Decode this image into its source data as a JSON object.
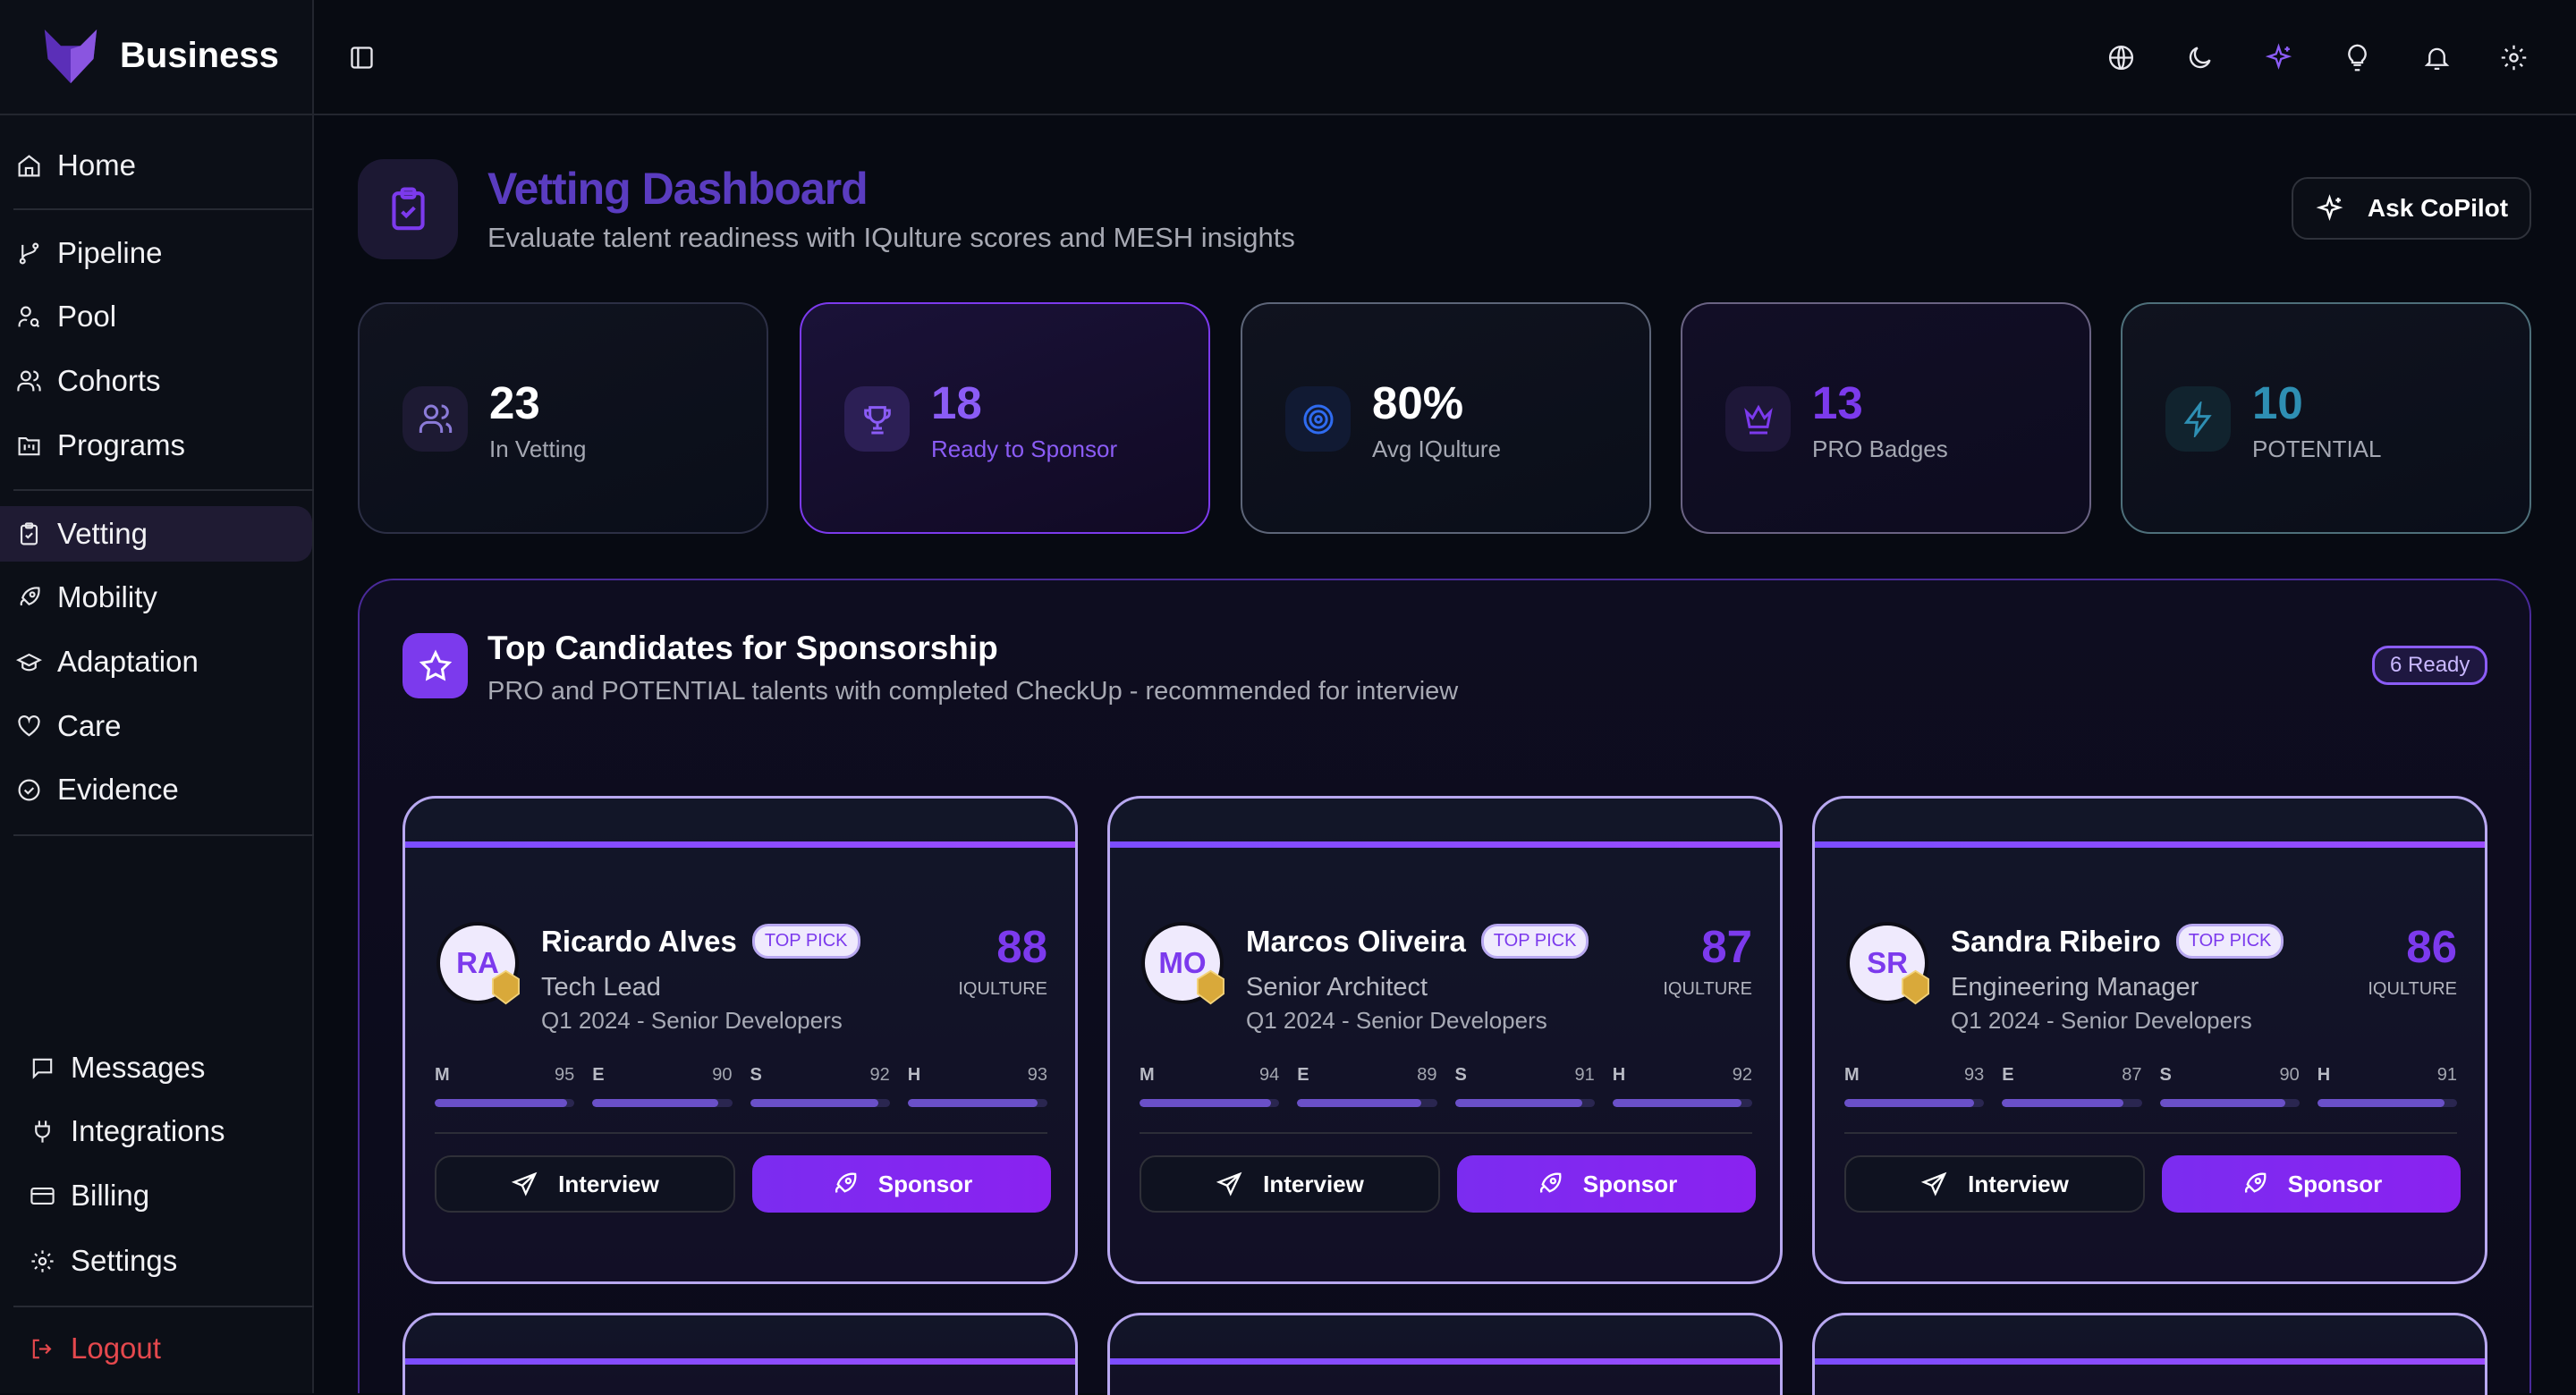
{
  "app": {
    "brand": "Business"
  },
  "sidebar": {
    "items": [
      {
        "label": "Home",
        "icon": "home-icon"
      },
      {
        "label": "Pipeline",
        "icon": "branch-icon"
      },
      {
        "label": "Pool",
        "icon": "user-search-icon"
      },
      {
        "label": "Cohorts",
        "icon": "users-icon"
      },
      {
        "label": "Programs",
        "icon": "folder-kanban-icon"
      },
      {
        "label": "Vetting",
        "icon": "clipboard-check-icon",
        "active": true
      },
      {
        "label": "Mobility",
        "icon": "rocket-icon"
      },
      {
        "label": "Adaptation",
        "icon": "graduation-cap-icon"
      },
      {
        "label": "Care",
        "icon": "heart-icon"
      },
      {
        "label": "Evidence",
        "icon": "check-circle-icon"
      }
    ],
    "bottom": [
      {
        "label": "Messages",
        "icon": "message-icon"
      },
      {
        "label": "Integrations",
        "icon": "plug-icon"
      },
      {
        "label": "Billing",
        "icon": "credit-card-icon"
      },
      {
        "label": "Settings",
        "icon": "gear-icon"
      }
    ],
    "logout": "Logout"
  },
  "header": {
    "icons": [
      "globe-icon",
      "moon-icon",
      "sparkles-icon",
      "lightbulb-icon",
      "bell-icon",
      "gear-icon"
    ]
  },
  "page": {
    "title": "Vetting Dashboard",
    "subtitle": "Evaluate talent readiness with IQulture scores and MESH insights",
    "copilot": "Ask CoPilot"
  },
  "stats": [
    {
      "value": "23",
      "label": "In Vetting",
      "color": "#ffffff"
    },
    {
      "value": "18",
      "label": "Ready to Sponsor",
      "color": "#8b5cf6"
    },
    {
      "value": "80%",
      "label": "Avg IQulture",
      "color": "#ffffff"
    },
    {
      "value": "13",
      "label": "PRO Badges",
      "color": "#7c3aed"
    },
    {
      "value": "10",
      "label": "POTENTIAL",
      "color": "#2e8fb3"
    }
  ],
  "section": {
    "title": "Top Candidates for Sponsorship",
    "subtitle": "PRO and POTENTIAL talents with completed CheckUp - recommended for interview",
    "badge": "6 Ready"
  },
  "candidates": [
    {
      "initials": "RA",
      "name": "Ricardo Alves",
      "tag": "TOP PICK",
      "role": "Tech Lead",
      "cohort": "Q1 2024 - Senior Developers",
      "score": "88",
      "score_label": "IQULTURE",
      "metrics": [
        {
          "k": "M",
          "v": 95
        },
        {
          "k": "E",
          "v": 90
        },
        {
          "k": "S",
          "v": 92
        },
        {
          "k": "H",
          "v": 93
        }
      ],
      "interview": "Interview",
      "sponsor": "Sponsor"
    },
    {
      "initials": "MO",
      "name": "Marcos Oliveira",
      "tag": "TOP PICK",
      "role": "Senior Architect",
      "cohort": "Q1 2024 - Senior Developers",
      "score": "87",
      "score_label": "IQULTURE",
      "metrics": [
        {
          "k": "M",
          "v": 94
        },
        {
          "k": "E",
          "v": 89
        },
        {
          "k": "S",
          "v": 91
        },
        {
          "k": "H",
          "v": 92
        }
      ],
      "interview": "Interview",
      "sponsor": "Sponsor"
    },
    {
      "initials": "SR",
      "name": "Sandra Ribeiro",
      "tag": "TOP PICK",
      "role": "Engineering Manager",
      "cohort": "Q1 2024 - Senior Developers",
      "score": "86",
      "score_label": "IQULTURE",
      "metrics": [
        {
          "k": "M",
          "v": 93
        },
        {
          "k": "E",
          "v": 87
        },
        {
          "k": "S",
          "v": 90
        },
        {
          "k": "H",
          "v": 91
        }
      ],
      "interview": "Interview",
      "sponsor": "Sponsor"
    }
  ]
}
